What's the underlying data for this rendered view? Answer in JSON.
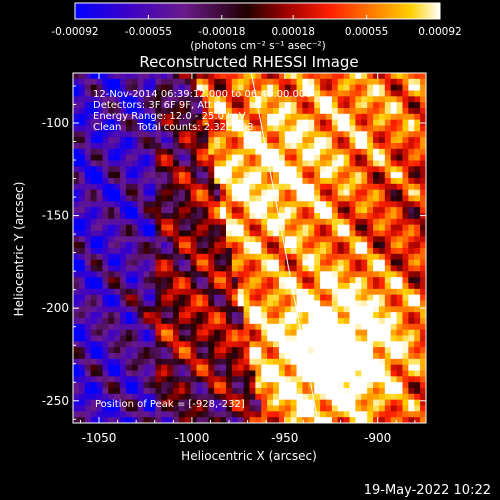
{
  "colorbar": {
    "tick_labels": [
      "-0.00092",
      "-0.00055",
      "-0.00018",
      "0.00018",
      "0.00055",
      "0.00092"
    ],
    "tick_values": [
      -0.00092,
      -0.00055,
      -0.00018,
      0.00018,
      0.00055,
      0.00092
    ],
    "range": [
      -0.00092,
      0.00092
    ],
    "units": "(photons cm⁻² s⁻¹ asec⁻²)",
    "colors": [
      "#0000ff",
      "#3a00c8",
      "#6a1a8a",
      "#3a0000",
      "#a00000",
      "#ff2000",
      "#ff8000",
      "#ffd000",
      "#ffffff"
    ]
  },
  "chart_data": {
    "type": "heatmap",
    "title": "Reconstructed RHESSI Image",
    "xlabel": "Heliocentric X (arcsec)",
    "ylabel": "Heliocentric Y (arcsec)",
    "xlim": [
      -1064,
      -874
    ],
    "ylim": [
      -262,
      -73
    ],
    "x_ticks": [
      -1050,
      -1000,
      -950,
      -900
    ],
    "x_tick_labels": [
      "-1050",
      "-1000",
      "-950",
      "-900"
    ],
    "y_ticks": [
      -100,
      -150,
      -200,
      -250
    ],
    "y_tick_labels": [
      "-100",
      "-150",
      "-200",
      "-250"
    ],
    "annotations": [
      "12-Nov-2014 06:39:12.000 to 06:45:00.000",
      "Detectors: 3F 6F 9F, Att 0",
      "Energy Range: 12.0 - 25.0 keV",
      "Clean     Total counts: 2.32E+03"
    ],
    "peak_label": "Position of Peak = [-928,-232]",
    "peak": [
      -928,
      -232
    ],
    "limb_line": [
      [
        -968,
        -73
      ],
      [
        -932,
        -262
      ]
    ],
    "sources": [
      {
        "x": -950,
        "y": -135,
        "amp": 0.55
      },
      {
        "x": -928,
        "y": -232,
        "amp": 1.0
      },
      {
        "x": -912,
        "y": -210,
        "amp": 0.6
      },
      {
        "x": -1003,
        "y": -208,
        "amp": 0.5
      },
      {
        "x": -985,
        "y": -140,
        "amp": 0.3
      },
      {
        "x": -900,
        "y": -90,
        "amp": 0.45
      },
      {
        "x": -960,
        "y": -95,
        "amp": 0.35
      }
    ]
  },
  "footer": {
    "timestamp": "19-May-2022 10:22"
  }
}
